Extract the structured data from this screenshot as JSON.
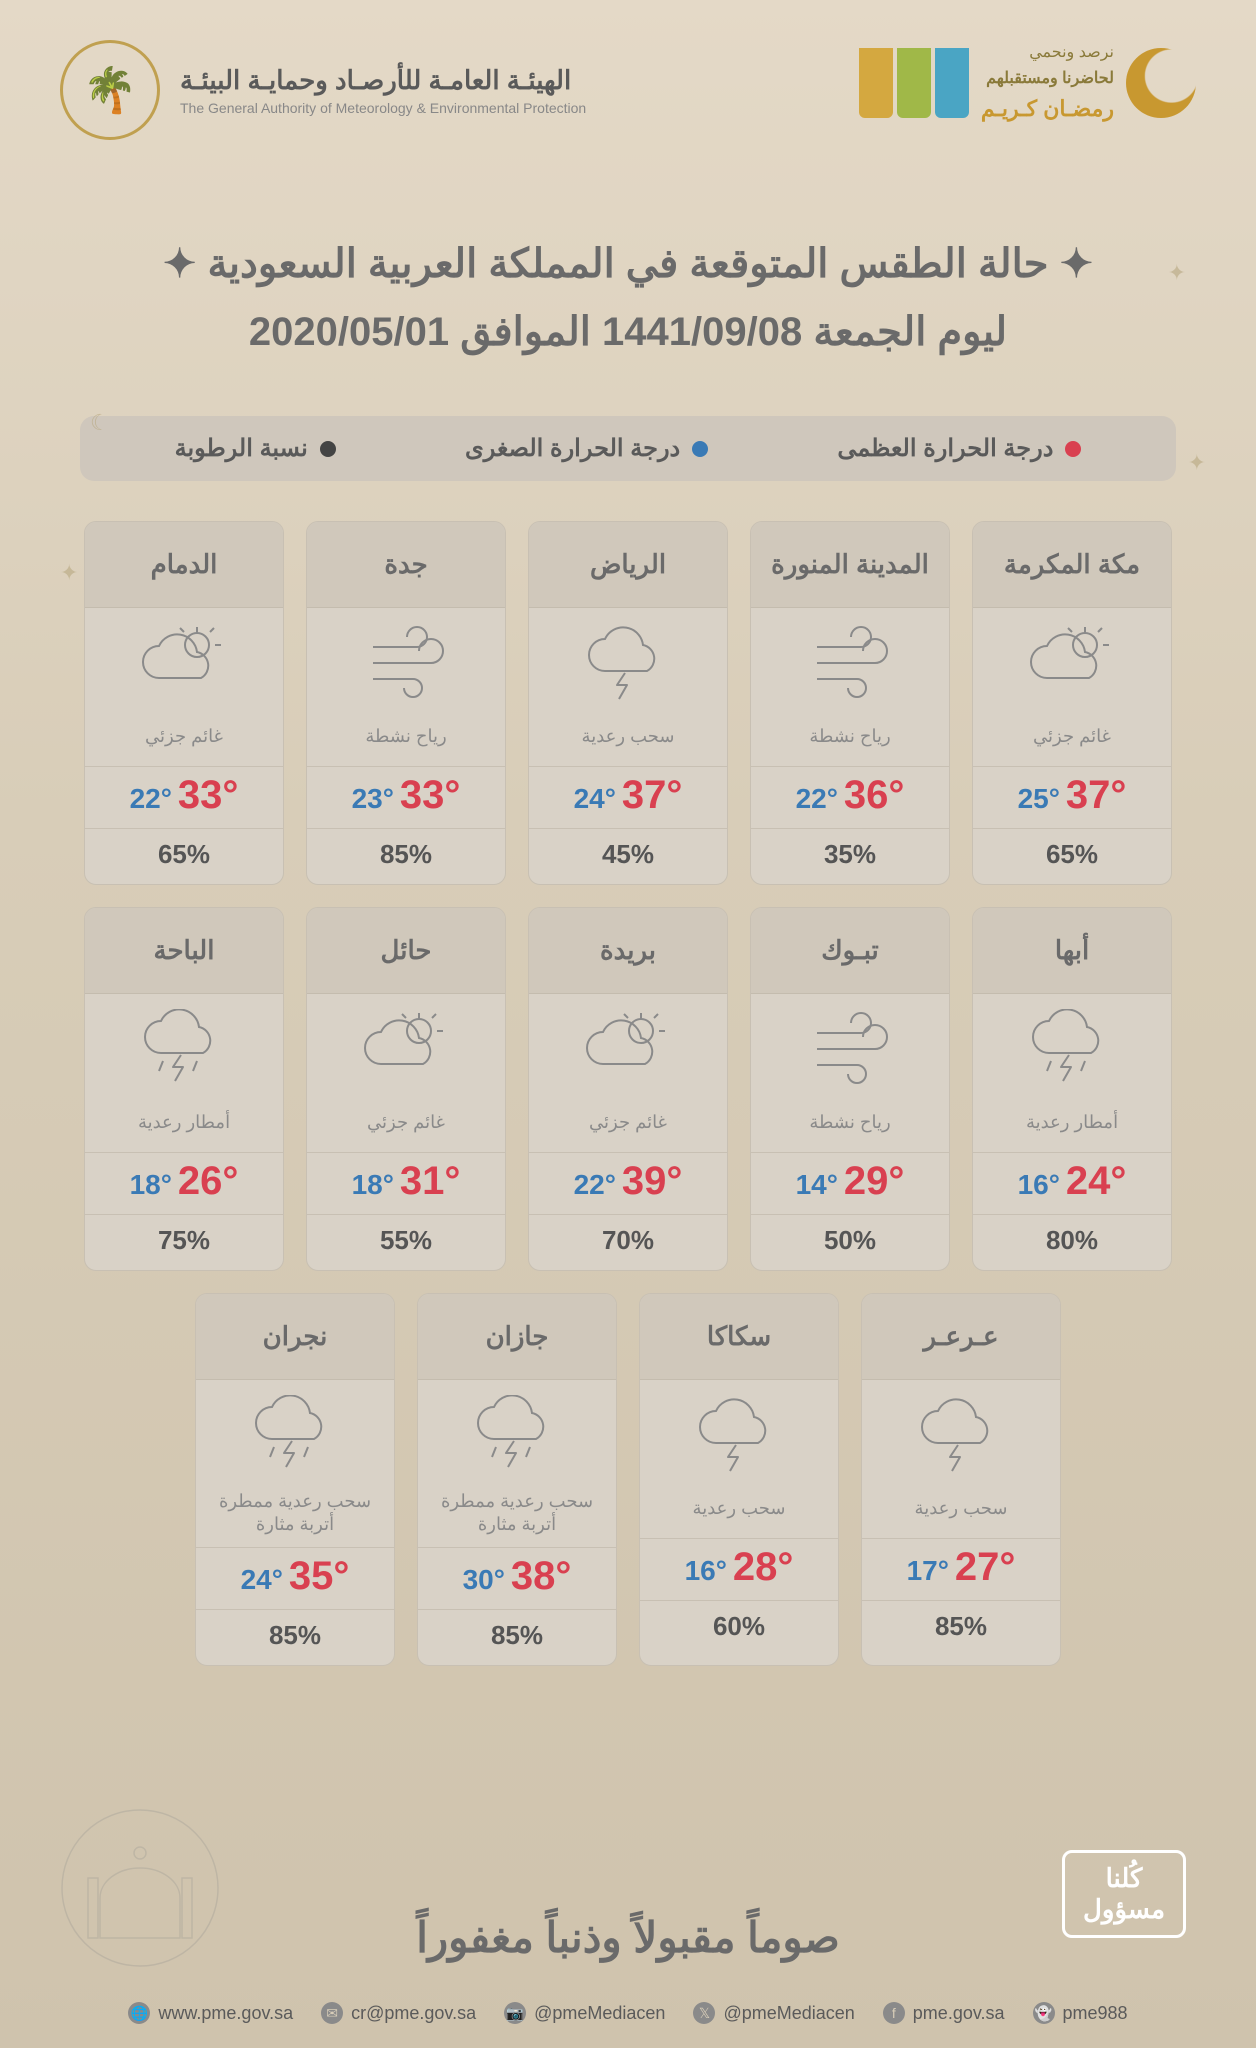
{
  "colors": {
    "high": "#d94050",
    "low": "#3a7ab5",
    "humidity": "#444444",
    "legend_bg": "#cfc7bc",
    "card_bg": "#d9d2c7"
  },
  "header": {
    "org_ar": "الهيئـة العامـة للأرصـاد وحمايـة البيئـة",
    "org_en": "The General Authority of Meteorology & Environmental Protection",
    "ramadan_line1": "نرصد ونحمي",
    "ramadan_line2": "لحاضرنا ومستقبلهم",
    "ramadan_line3": "رمضـان كـريـم"
  },
  "title_line1": "حالة الطقس المتوقعة في المملكة العربية السعودية",
  "title_line2": "ليوم الجمعة 1441/09/08 الموافق 2020/05/01",
  "legend": {
    "high": "درجة الحرارة العظمى",
    "low": "درجة الحرارة الصغرى",
    "humidity": "نسبة الرطوبة"
  },
  "conditions": {
    "partly_cloudy": "غائم جزئي",
    "active_wind": "رياح نشطة",
    "thunder_clouds": "سحب رعدية",
    "thunder_rain": "أمطار رعدية",
    "thunder_dust": "سحب رعدية ممطرة أتربة مثارة"
  },
  "cities": [
    {
      "name": "مكة المكرمة",
      "icon": "partly",
      "cond": "partly_cloudy",
      "high": "37°",
      "low": "25°",
      "hum": "65%"
    },
    {
      "name": "المدينة المنورة",
      "icon": "wind",
      "cond": "active_wind",
      "high": "36°",
      "low": "22°",
      "hum": "35%"
    },
    {
      "name": "الرياض",
      "icon": "thunder",
      "cond": "thunder_clouds",
      "high": "37°",
      "low": "24°",
      "hum": "45%"
    },
    {
      "name": "جدة",
      "icon": "wind",
      "cond": "active_wind",
      "high": "33°",
      "low": "23°",
      "hum": "85%"
    },
    {
      "name": "الدمام",
      "icon": "partly",
      "cond": "partly_cloudy",
      "high": "33°",
      "low": "22°",
      "hum": "65%"
    },
    {
      "name": "أبها",
      "icon": "thunderrain",
      "cond": "thunder_rain",
      "high": "24°",
      "low": "16°",
      "hum": "80%"
    },
    {
      "name": "تبـوك",
      "icon": "wind",
      "cond": "active_wind",
      "high": "29°",
      "low": "14°",
      "hum": "50%"
    },
    {
      "name": "بريدة",
      "icon": "partly",
      "cond": "partly_cloudy",
      "high": "39°",
      "low": "22°",
      "hum": "70%"
    },
    {
      "name": "حائل",
      "icon": "partly",
      "cond": "partly_cloudy",
      "high": "31°",
      "low": "18°",
      "hum": "55%"
    },
    {
      "name": "الباحة",
      "icon": "thunderrain",
      "cond": "thunder_rain",
      "high": "26°",
      "low": "18°",
      "hum": "75%"
    },
    {
      "name": "عـرعـر",
      "icon": "thunder",
      "cond": "thunder_clouds",
      "high": "27°",
      "low": "17°",
      "hum": "85%"
    },
    {
      "name": "سكاكا",
      "icon": "thunder",
      "cond": "thunder_clouds",
      "high": "28°",
      "low": "16°",
      "hum": "60%"
    },
    {
      "name": "جازان",
      "icon": "thunderrain",
      "cond": "thunder_dust",
      "high": "38°",
      "low": "30°",
      "hum": "85%"
    },
    {
      "name": "نجران",
      "icon": "thunderrain",
      "cond": "thunder_dust",
      "high": "35°",
      "low": "24°",
      "hum": "85%"
    }
  ],
  "footer": {
    "blessing": "صوماً مقبولاً وذنباً مغفوراً",
    "kullana_l1": "كُلنا",
    "kullana_l2": "مسؤول",
    "contacts": [
      {
        "icon": "🌐",
        "text": "www.pme.gov.sa"
      },
      {
        "icon": "✉",
        "text": "cr@pme.gov.sa"
      },
      {
        "icon": "📷",
        "text": "@pmeMediacen"
      },
      {
        "icon": "𝕏",
        "text": "@pmeMediacen"
      },
      {
        "icon": "f",
        "text": "pme.gov.sa"
      },
      {
        "icon": "👻",
        "text": "pme988"
      }
    ]
  }
}
